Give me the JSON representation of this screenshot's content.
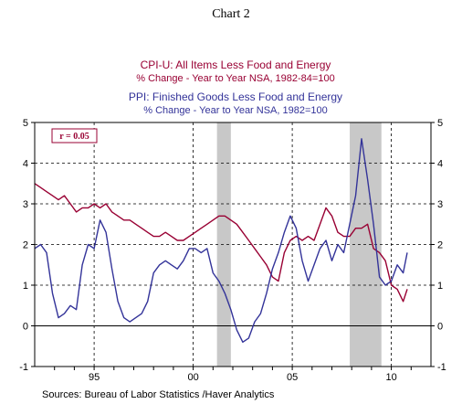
{
  "chart_data": {
    "type": "line",
    "chart_title": "Chart 2",
    "legend": {
      "cpi_title": "CPI-U: All Items Less Food and Energy",
      "cpi_subtitle": "% Change - Year to Year    NSA, 1982-84=100",
      "ppi_title": "PPI: Finished Goods Less Food and Energy",
      "ppi_subtitle": "% Change - Year to Year    NSA, 1982=100"
    },
    "annotation": "r = 0.05",
    "source": "Sources:  Bureau of Labor Statistics /Haver Analytics",
    "xlim": [
      1992.0,
      2012.0
    ],
    "ylim": [
      -1,
      5
    ],
    "grid": true,
    "x_ticks": [
      {
        "value": 1995,
        "label": "95"
      },
      {
        "value": 2000,
        "label": "00"
      },
      {
        "value": 2005,
        "label": "05"
      },
      {
        "value": 2010,
        "label": "10"
      }
    ],
    "x_minor_ticks": [
      1993,
      1994,
      1995,
      1996,
      1997,
      1998,
      1999,
      2000,
      2001,
      2002,
      2003,
      2004,
      2005,
      2006,
      2007,
      2008,
      2009,
      2010,
      2011
    ],
    "y_ticks": [
      -1,
      0,
      1,
      2,
      3,
      4,
      5
    ],
    "recessions": [
      [
        2001.2,
        2001.9
      ],
      [
        2007.9,
        2009.5
      ]
    ],
    "series": [
      {
        "name": "CPI-U: All Items Less Food and Energy",
        "color": "#990033",
        "x": [
          1992.0,
          1992.3,
          1992.6,
          1992.9,
          1993.2,
          1993.5,
          1993.8,
          1994.1,
          1994.4,
          1994.7,
          1995.0,
          1995.3,
          1995.6,
          1995.9,
          1996.2,
          1996.5,
          1996.8,
          1997.1,
          1997.4,
          1997.7,
          1998.0,
          1998.3,
          1998.6,
          1998.9,
          1999.2,
          1999.5,
          1999.8,
          2000.1,
          2000.4,
          2000.7,
          2001.0,
          2001.3,
          2001.6,
          2001.9,
          2002.2,
          2002.5,
          2002.8,
          2003.1,
          2003.4,
          2003.7,
          2004.0,
          2004.3,
          2004.6,
          2004.9,
          2005.2,
          2005.5,
          2005.8,
          2006.1,
          2006.4,
          2006.7,
          2007.0,
          2007.3,
          2007.6,
          2007.9,
          2008.2,
          2008.5,
          2008.8,
          2009.1,
          2009.4,
          2009.7,
          2010.0,
          2010.3,
          2010.6,
          2010.8
        ],
        "y": [
          3.5,
          3.4,
          3.3,
          3.2,
          3.1,
          3.2,
          3.0,
          2.8,
          2.9,
          2.9,
          3.0,
          2.9,
          3.0,
          2.8,
          2.7,
          2.6,
          2.6,
          2.5,
          2.4,
          2.3,
          2.2,
          2.2,
          2.3,
          2.2,
          2.1,
          2.1,
          2.2,
          2.3,
          2.4,
          2.5,
          2.6,
          2.7,
          2.7,
          2.6,
          2.5,
          2.3,
          2.1,
          1.9,
          1.7,
          1.5,
          1.2,
          1.1,
          1.8,
          2.1,
          2.2,
          2.1,
          2.2,
          2.1,
          2.5,
          2.9,
          2.7,
          2.3,
          2.2,
          2.2,
          2.4,
          2.4,
          2.5,
          1.9,
          1.8,
          1.6,
          1.0,
          0.9,
          0.6,
          0.9
        ]
      },
      {
        "name": "PPI: Finished Goods Less Food and Energy",
        "color": "#333399",
        "x": [
          1992.0,
          1992.3,
          1992.6,
          1992.9,
          1993.2,
          1993.5,
          1993.8,
          1994.1,
          1994.4,
          1994.7,
          1995.0,
          1995.3,
          1995.6,
          1995.9,
          1996.2,
          1996.5,
          1996.8,
          1997.1,
          1997.4,
          1997.7,
          1998.0,
          1998.3,
          1998.6,
          1998.9,
          1999.2,
          1999.5,
          1999.8,
          2000.1,
          2000.4,
          2000.7,
          2001.0,
          2001.3,
          2001.6,
          2001.9,
          2002.2,
          2002.5,
          2002.8,
          2003.1,
          2003.4,
          2003.7,
          2004.0,
          2004.3,
          2004.6,
          2004.9,
          2005.2,
          2005.5,
          2005.8,
          2006.1,
          2006.4,
          2006.7,
          2007.0,
          2007.3,
          2007.6,
          2007.9,
          2008.2,
          2008.5,
          2008.8,
          2009.1,
          2009.4,
          2009.7,
          2010.0,
          2010.3,
          2010.6,
          2010.8
        ],
        "y": [
          1.9,
          2.0,
          1.8,
          0.8,
          0.2,
          0.3,
          0.5,
          0.4,
          1.5,
          2.0,
          1.9,
          2.6,
          2.3,
          1.4,
          0.6,
          0.2,
          0.1,
          0.2,
          0.3,
          0.6,
          1.3,
          1.5,
          1.6,
          1.5,
          1.4,
          1.6,
          1.9,
          1.9,
          1.8,
          1.9,
          1.3,
          1.1,
          0.8,
          0.4,
          -0.1,
          -0.4,
          -0.3,
          0.1,
          0.3,
          0.8,
          1.4,
          1.8,
          2.3,
          2.7,
          2.4,
          1.6,
          1.1,
          1.5,
          1.9,
          2.1,
          1.6,
          2.0,
          1.8,
          2.5,
          3.2,
          4.6,
          3.6,
          2.5,
          1.2,
          1.0,
          1.1,
          1.5,
          1.3,
          1.8
        ]
      }
    ]
  }
}
